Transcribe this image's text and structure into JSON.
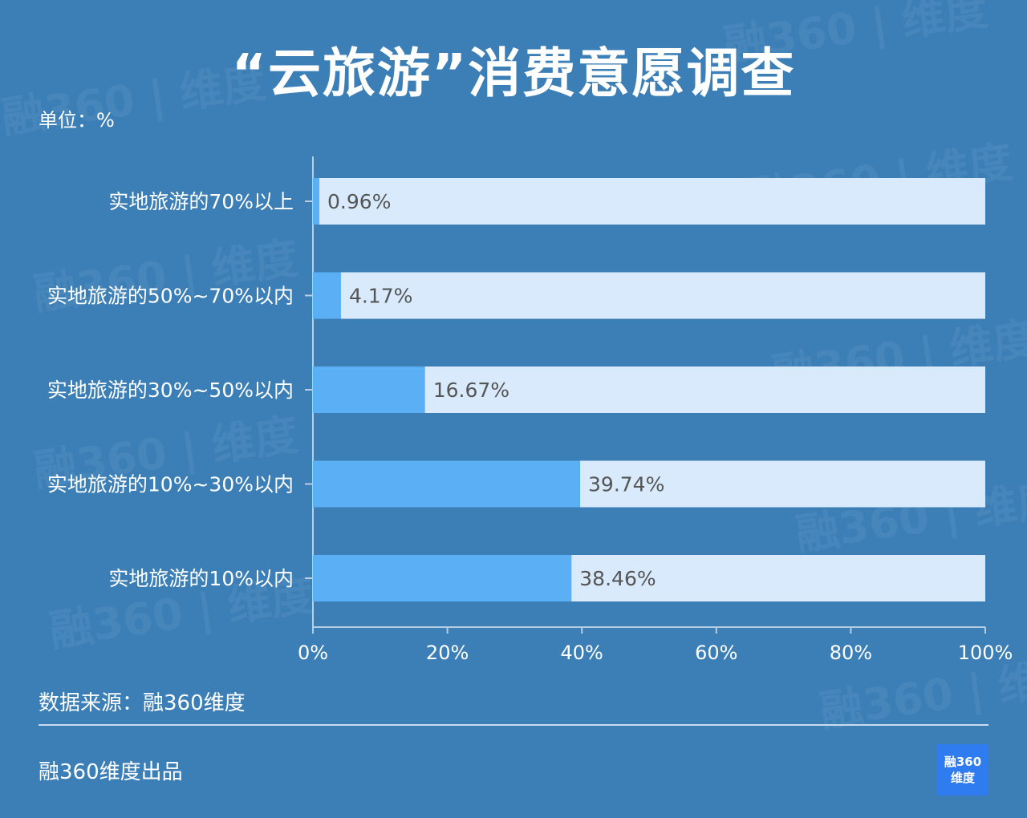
{
  "title": "“云旅游”消费意愿调查",
  "unit_label": "单位：%",
  "source": "数据来源：融360维度",
  "producer": "融360维度出品",
  "logo": {
    "line1": "融360",
    "line2": "维度"
  },
  "watermark_text": "融360 | 维度",
  "colors": {
    "background": "#3c7fb6",
    "bar": "#5aaff5",
    "track": "#d8eafb",
    "value_text": "#555555"
  },
  "chart_data": {
    "type": "bar",
    "orientation": "horizontal",
    "categories": [
      "实地旅游的70%以上",
      "实地旅游的50%~70%以内",
      "实地旅游的30%~50%以内",
      "实地旅游的10%~30%以内",
      "实地旅游的10%以内"
    ],
    "values": [
      0.96,
      4.17,
      16.67,
      39.74,
      38.46
    ],
    "value_labels": [
      "0.96%",
      "4.17%",
      "16.67%",
      "39.74%",
      "38.46%"
    ],
    "xlim": [
      0,
      100
    ],
    "x_ticks": [
      "0%",
      "20%",
      "40%",
      "60%",
      "80%",
      "100%"
    ],
    "grid": false,
    "legend": "none"
  }
}
